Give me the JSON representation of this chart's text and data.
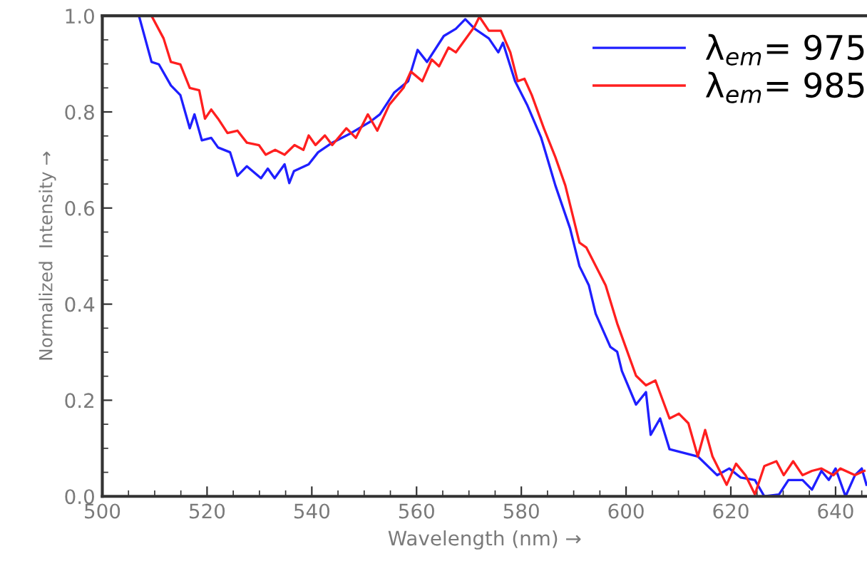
{
  "chart_data": {
    "type": "line",
    "xlabel": "Wavelength (nm) →",
    "ylabel": "Normalized  Intensity →",
    "xlim": [
      500,
      646
    ],
    "ylim": [
      0.0,
      1.0
    ],
    "xticks": [
      500,
      520,
      540,
      560,
      580,
      600,
      620,
      640
    ],
    "yticks": [
      {
        "value": 0,
        "label": "0.0"
      },
      0.2,
      0.4,
      0.6,
      0.8,
      {
        "value": 1,
        "label": "1.0"
      }
    ],
    "grid": false,
    "legend": "top right",
    "marker": "none",
    "line_style": "solid",
    "series": [
      {
        "name": "λ$_{em}$= 975",
        "color": "#1f1fff",
        "x": [
          507.0,
          509.4,
          510.8,
          513.1,
          514.9,
          516.7,
          517.6,
          519.0,
          520.8,
          522.1,
          524.4,
          525.8,
          527.6,
          530.3,
          531.6,
          532.9,
          534.8,
          535.7,
          536.6,
          539.4,
          541.2,
          543.9,
          547.5,
          551.2,
          553.0,
          555.7,
          558.4,
          560.2,
          562.0,
          565.2,
          567.5,
          569.3,
          571.1,
          573.8,
          575.6,
          576.5,
          578.8,
          581.1,
          583.8,
          586.5,
          589.3,
          591.1,
          592.9,
          594.2,
          597.0,
          598.3,
          599.2,
          601.9,
          603.8,
          604.7,
          606.5,
          608.3,
          613.7,
          617.4,
          619.7,
          621.9,
          624.6,
          626.4,
          629.2,
          631.0,
          633.7,
          635.5,
          637.3,
          638.7,
          640.0,
          641.9,
          643.7,
          645.0,
          645.9
        ],
        "values": [
          1.0,
          0.904,
          0.899,
          0.855,
          0.835,
          0.766,
          0.795,
          0.741,
          0.746,
          0.726,
          0.716,
          0.667,
          0.687,
          0.662,
          0.682,
          0.662,
          0.691,
          0.652,
          0.677,
          0.691,
          0.716,
          0.736,
          0.756,
          0.78,
          0.795,
          0.84,
          0.864,
          0.929,
          0.904,
          0.958,
          0.973,
          0.993,
          0.973,
          0.953,
          0.924,
          0.944,
          0.864,
          0.815,
          0.746,
          0.647,
          0.558,
          0.479,
          0.439,
          0.38,
          0.311,
          0.301,
          0.261,
          0.191,
          0.217,
          0.128,
          0.162,
          0.098,
          0.083,
          0.044,
          0.058,
          0.039,
          0.034,
          0.0,
          0.004,
          0.034,
          0.034,
          0.014,
          0.053,
          0.034,
          0.058,
          0.0,
          0.044,
          0.058,
          0.024
        ]
      },
      {
        "name": "λ$_{em}$= 985",
        "color": "#ff1f1f",
        "x": [
          509.4,
          511.7,
          513.1,
          514.9,
          516.7,
          518.5,
          519.6,
          520.8,
          522.1,
          523.9,
          525.8,
          527.6,
          529.9,
          531.2,
          533.0,
          534.8,
          536.7,
          538.4,
          539.4,
          540.7,
          542.5,
          543.9,
          546.6,
          548.4,
          550.7,
          552.5,
          554.8,
          557.5,
          558.9,
          561.1,
          562.9,
          564.3,
          566.1,
          567.5,
          571.1,
          572.0,
          573.8,
          576.1,
          577.9,
          579.3,
          580.6,
          582.0,
          584.3,
          586.5,
          588.4,
          591.1,
          592.4,
          596.1,
          598.3,
          601.9,
          603.8,
          605.6,
          608.3,
          610.1,
          611.9,
          613.7,
          615.1,
          616.5,
          619.2,
          621.0,
          622.8,
          624.6,
          626.4,
          628.7,
          630.1,
          631.9,
          633.7,
          635.5,
          637.3,
          639.6,
          640.9,
          643.7,
          645.5
        ],
        "values": [
          1.0,
          0.953,
          0.904,
          0.899,
          0.85,
          0.845,
          0.786,
          0.805,
          0.786,
          0.756,
          0.761,
          0.736,
          0.731,
          0.711,
          0.721,
          0.711,
          0.731,
          0.721,
          0.751,
          0.731,
          0.751,
          0.731,
          0.766,
          0.746,
          0.795,
          0.761,
          0.815,
          0.85,
          0.884,
          0.864,
          0.909,
          0.895,
          0.934,
          0.924,
          0.978,
          0.998,
          0.969,
          0.969,
          0.924,
          0.864,
          0.869,
          0.835,
          0.766,
          0.706,
          0.647,
          0.528,
          0.518,
          0.439,
          0.36,
          0.251,
          0.231,
          0.241,
          0.162,
          0.172,
          0.152,
          0.083,
          0.138,
          0.083,
          0.024,
          0.068,
          0.044,
          0.004,
          0.063,
          0.073,
          0.044,
          0.073,
          0.044,
          0.053,
          0.058,
          0.044,
          0.058,
          0.044,
          0.053
        ]
      }
    ]
  }
}
